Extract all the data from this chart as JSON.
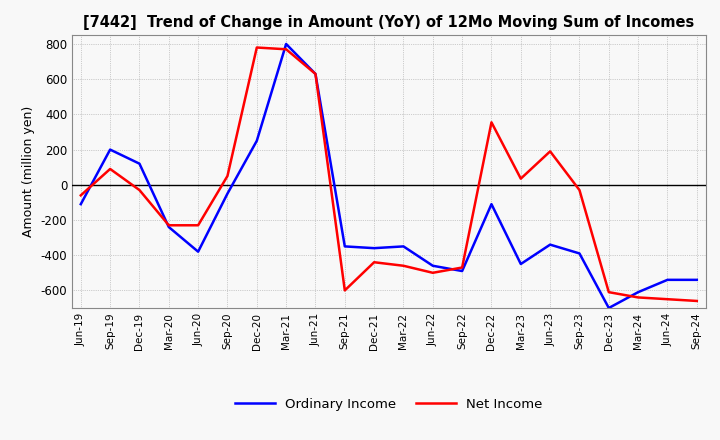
{
  "title": "[7442]  Trend of Change in Amount (YoY) of 12Mo Moving Sum of Incomes",
  "ylabel": "Amount (million yen)",
  "x_labels": [
    "Jun-19",
    "Sep-19",
    "Dec-19",
    "Mar-20",
    "Jun-20",
    "Sep-20",
    "Dec-20",
    "Mar-21",
    "Jun-21",
    "Sep-21",
    "Dec-21",
    "Mar-22",
    "Jun-22",
    "Sep-22",
    "Dec-22",
    "Mar-23",
    "Jun-23",
    "Sep-23",
    "Dec-23",
    "Mar-24",
    "Jun-24",
    "Sep-24"
  ],
  "ordinary_income": [
    -110,
    200,
    120,
    -240,
    -380,
    -50,
    250,
    800,
    630,
    -350,
    -360,
    -350,
    -460,
    -490,
    -110,
    -450,
    -340,
    -390,
    -700,
    -610,
    -540,
    -540
  ],
  "net_income": [
    -60,
    90,
    -30,
    -230,
    -230,
    50,
    780,
    770,
    630,
    -600,
    -440,
    -460,
    -500,
    -470,
    355,
    35,
    190,
    -30,
    -610,
    -640,
    -650,
    -660
  ],
  "ordinary_color": "#0000ff",
  "net_color": "#ff0000",
  "ylim": [
    -700,
    850
  ],
  "yticks": [
    -600,
    -400,
    -200,
    0,
    200,
    400,
    600,
    800
  ],
  "background_color": "#f8f8f8",
  "grid_color": "#999999",
  "legend_labels": [
    "Ordinary Income",
    "Net Income"
  ],
  "linewidth": 1.8
}
